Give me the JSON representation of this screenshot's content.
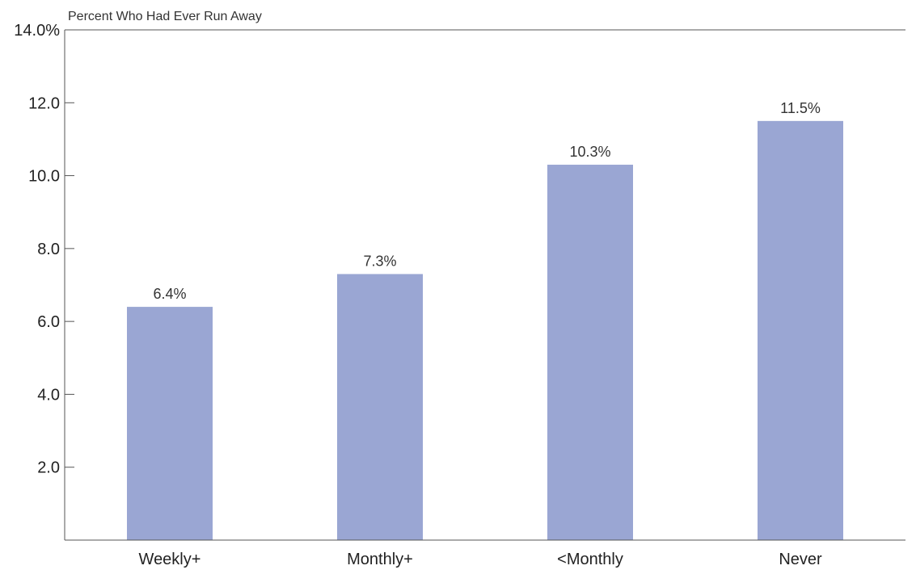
{
  "chart_data": {
    "type": "bar",
    "ylabel": "Percent Who Had Ever Run Away",
    "categories": [
      "Weekly+",
      "Monthly+",
      "<Monthly",
      "Never"
    ],
    "values": [
      6.4,
      7.3,
      10.3,
      11.5
    ],
    "data_labels": [
      "6.4%",
      "7.3%",
      "10.3%",
      "11.5%"
    ],
    "ylim": [
      0,
      14
    ],
    "y_ticks": [
      2,
      4,
      6,
      8,
      10,
      12,
      14
    ],
    "y_tick_labels": [
      "2.0",
      "4.0",
      "6.0",
      "8.0",
      "10.0",
      "12.0",
      "14.0%"
    ],
    "grid": false,
    "bar_color": "#9AA6D3"
  }
}
